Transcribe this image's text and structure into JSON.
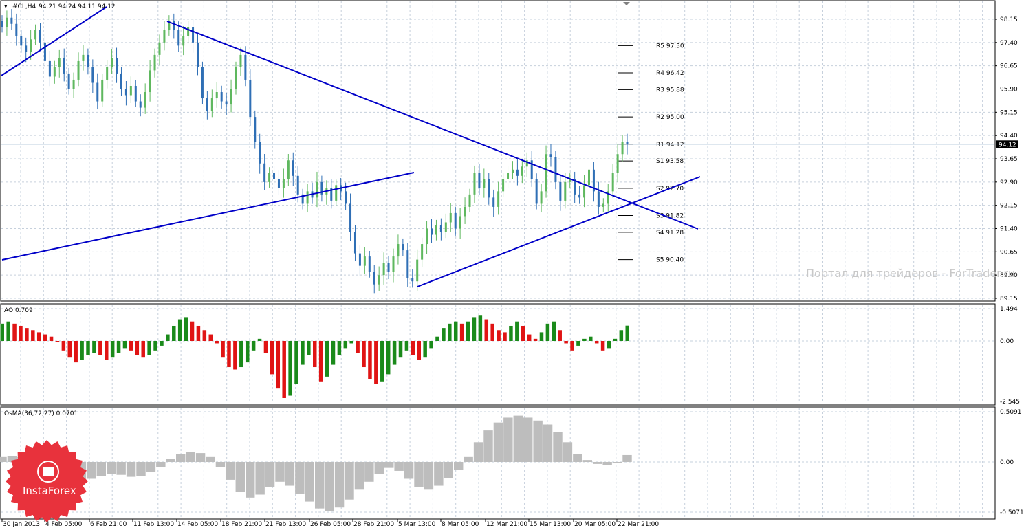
{
  "header": {
    "symbol_label": "#CL,H4",
    "ohlc_label": "94.21 94.24 94.11 94.12"
  },
  "watermark": "Портал для трейдеров - ForTrader.ru",
  "logo": {
    "text": "InstaForex",
    "color": "#e8323c"
  },
  "colors": {
    "bull": "#5fb85f",
    "bear": "#2f6fb5",
    "trendline": "#0000c8",
    "ao_up": "#1a8a1a",
    "ao_down": "#e01414",
    "osma": "#bdbdbd",
    "grid": "#c6d0dc",
    "price_line": "#7f9fbf"
  },
  "current_price": {
    "value": 94.12,
    "label": "94.12"
  },
  "chart_data": [
    {
      "type": "candlestick",
      "panel": "price",
      "y_ticks": [
        "98.15",
        "97.40",
        "96.65",
        "95.90",
        "95.15",
        "94.40",
        "93.65",
        "92.90",
        "92.15",
        "91.40",
        "90.65",
        "89.90",
        "89.15"
      ],
      "ylim": [
        89.15,
        98.5
      ],
      "x_tick_labels": [
        "30 Jan 2013",
        "4 Feb 05:00",
        "6 Feb 21:00",
        "11 Feb 13:00",
        "14 Feb 05:00",
        "18 Feb 21:00",
        "21 Feb 13:00",
        "26 Feb 05:00",
        "28 Feb 21:00",
        "5 Mar 13:00",
        "8 Mar 05:00",
        "12 Mar 21:00",
        "15 Mar 13:00",
        "20 Mar 05:00",
        "22 Mar 21:00"
      ],
      "candles_close": [
        97.9,
        98.2,
        98.0,
        97.6,
        97.3,
        97.1,
        97.5,
        97.8,
        97.4,
        96.8,
        96.3,
        96.6,
        96.9,
        96.4,
        95.9,
        96.2,
        96.8,
        97.0,
        96.6,
        96.1,
        95.5,
        96.2,
        96.6,
        96.9,
        96.4,
        95.9,
        95.7,
        96.0,
        95.5,
        95.3,
        95.8,
        96.5,
        97.0,
        97.4,
        97.8,
        98.1,
        97.8,
        97.3,
        97.6,
        97.9,
        97.4,
        96.6,
        95.6,
        95.2,
        95.6,
        95.8,
        95.5,
        95.4,
        95.9,
        96.6,
        97.0,
        96.2,
        95.0,
        94.2,
        93.5,
        92.9,
        93.2,
        93.0,
        92.7,
        93.0,
        93.6,
        93.1,
        92.5,
        92.2,
        92.6,
        92.4,
        92.9,
        92.5,
        92.7,
        92.3,
        92.8,
        92.6,
        92.2,
        91.3,
        90.6,
        90.2,
        90.5,
        90.0,
        89.6,
        89.9,
        90.3,
        90.0,
        90.5,
        90.9,
        90.7,
        89.8,
        89.7,
        90.4,
        90.9,
        91.4,
        91.2,
        91.5,
        91.3,
        91.6,
        91.9,
        91.4,
        91.8,
        92.1,
        92.5,
        93.2,
        92.7,
        93.0,
        92.4,
        92.1,
        92.6,
        93.0,
        93.2,
        93.3,
        93.1,
        93.4,
        93.6,
        93.0,
        92.2,
        92.6,
        93.8,
        93.7,
        92.9,
        92.3,
        92.9,
        93.0,
        92.5,
        92.4,
        92.8,
        93.3,
        92.6,
        92.1,
        92.2,
        92.6,
        93.2,
        93.8,
        94.2,
        94.12
      ]
    },
    {
      "type": "pivot_levels",
      "levels": [
        {
          "name": "R5 97.30",
          "value": 97.3
        },
        {
          "name": "R4 96.42",
          "value": 96.42
        },
        {
          "name": "R3 95.88",
          "value": 95.88
        },
        {
          "name": "R2 95.00",
          "value": 95.0
        },
        {
          "name": "R1 94.12",
          "value": 94.12
        },
        {
          "name": "S1 93.58",
          "value": 93.58
        },
        {
          "name": "S2 92.70",
          "value": 92.7
        },
        {
          "name": "S3 91.82",
          "value": 91.82
        },
        {
          "name": "S4 91.28",
          "value": 91.28
        },
        {
          "name": "S5 90.40",
          "value": 90.4
        }
      ]
    },
    {
      "type": "bar",
      "panel": "ao",
      "title": "AO 0.709",
      "y_ticks": [
        "1.494",
        "0.00",
        "-2.545"
      ],
      "ylim": [
        -2.545,
        1.494
      ],
      "values": [
        0.8,
        0.9,
        0.8,
        0.7,
        0.6,
        0.5,
        0.4,
        0.3,
        0.2,
        0.0,
        -0.4,
        -0.7,
        -0.9,
        -0.8,
        -0.6,
        -0.5,
        -0.6,
        -0.8,
        -0.7,
        -0.5,
        -0.3,
        -0.4,
        -0.6,
        -0.7,
        -0.6,
        -0.4,
        -0.2,
        0.3,
        0.7,
        1.0,
        1.1,
        0.9,
        0.7,
        0.5,
        0.3,
        -0.1,
        -0.7,
        -1.1,
        -1.2,
        -1.1,
        -0.9,
        -0.4,
        0.1,
        -0.5,
        -1.4,
        -2.0,
        -2.4,
        -2.3,
        -1.8,
        -1.0,
        -0.6,
        -1.1,
        -1.7,
        -1.5,
        -1.0,
        -0.6,
        -0.3,
        -0.1,
        -0.5,
        -1.1,
        -1.6,
        -1.8,
        -1.7,
        -1.4,
        -1.0,
        -0.7,
        -0.4,
        -0.6,
        -0.8,
        -0.7,
        -0.3,
        0.2,
        0.6,
        0.8,
        0.9,
        0.8,
        0.9,
        1.1,
        1.2,
        1.0,
        0.8,
        0.5,
        0.4,
        0.7,
        0.9,
        0.7,
        0.3,
        0.1,
        0.4,
        0.8,
        0.9,
        0.5,
        -0.1,
        -0.4,
        -0.2,
        0.1,
        0.2,
        -0.1,
        -0.4,
        -0.3,
        0.1,
        0.5,
        0.709
      ]
    },
    {
      "type": "bar",
      "panel": "osma",
      "title": "OsMA(36,72,27) 0.0701",
      "y_ticks": [
        "0.5091",
        "0.00",
        "-0.5071"
      ],
      "ylim": [
        -0.5071,
        0.5091
      ],
      "values": [
        0.05,
        0.06,
        0.05,
        0.03,
        0.0,
        -0.05,
        -0.1,
        -0.15,
        -0.18,
        -0.17,
        -0.14,
        -0.12,
        -0.13,
        -0.15,
        -0.14,
        -0.1,
        -0.05,
        0.03,
        0.08,
        0.1,
        0.09,
        0.05,
        -0.05,
        -0.18,
        -0.3,
        -0.36,
        -0.33,
        -0.25,
        -0.2,
        -0.24,
        -0.32,
        -0.4,
        -0.47,
        -0.5,
        -0.46,
        -0.38,
        -0.28,
        -0.2,
        -0.12,
        -0.06,
        -0.09,
        -0.17,
        -0.25,
        -0.28,
        -0.24,
        -0.16,
        -0.08,
        0.05,
        0.2,
        0.32,
        0.4,
        0.45,
        0.47,
        0.45,
        0.42,
        0.38,
        0.3,
        0.2,
        0.08,
        0.02,
        -0.02,
        -0.03,
        0.0,
        0.0701
      ]
    }
  ]
}
